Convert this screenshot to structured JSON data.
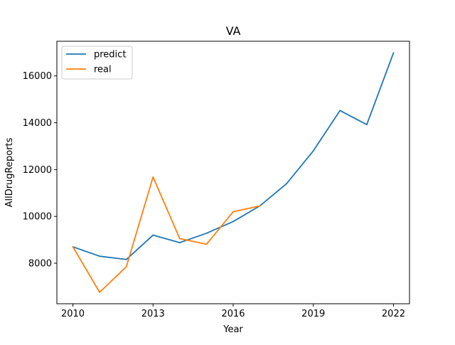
{
  "chart_data": {
    "type": "line",
    "title": "VA",
    "xlabel": "Year",
    "ylabel": "AllDrugReports",
    "xlim": [
      2009.4,
      2022.6
    ],
    "ylim": [
      6270,
      17480
    ],
    "xticks": [
      2010,
      2013,
      2016,
      2019,
      2022
    ],
    "yticks": [
      8000,
      10000,
      12000,
      14000,
      16000
    ],
    "grid": false,
    "legend_position": "upper left",
    "series": [
      {
        "name": "predict",
        "color": "#1f77b4",
        "x": [
          2010,
          2011,
          2012,
          2013,
          2014,
          2015,
          2016,
          2017,
          2018,
          2019,
          2020,
          2021,
          2022
        ],
        "y": [
          8700,
          8300,
          8160,
          9200,
          8880,
          9280,
          9780,
          10450,
          11400,
          12800,
          14520,
          13920,
          16980
        ]
      },
      {
        "name": "real",
        "color": "#ff7f0e",
        "x": [
          2010,
          2011,
          2012,
          2013,
          2014,
          2015,
          2016,
          2017
        ],
        "y": [
          8700,
          6760,
          7850,
          11680,
          9050,
          8810,
          10200,
          10450
        ]
      }
    ]
  }
}
